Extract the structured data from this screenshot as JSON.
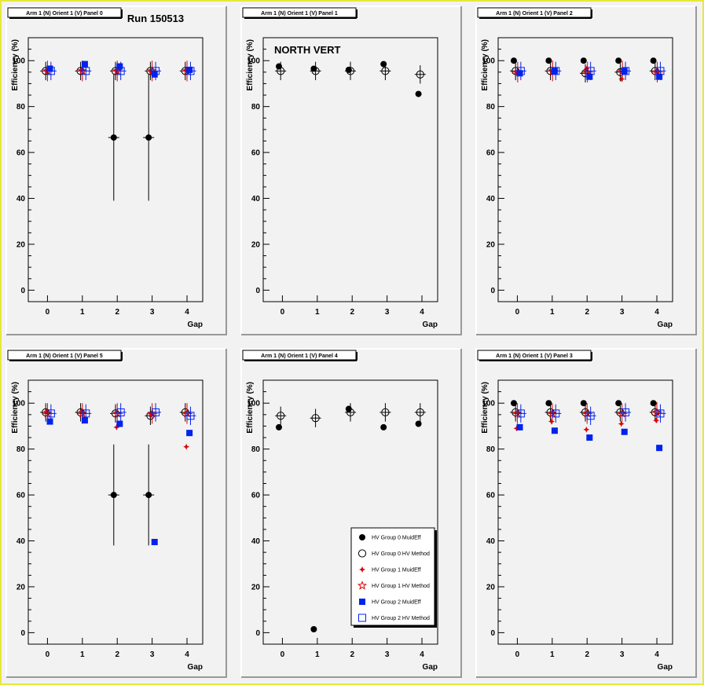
{
  "header": {
    "run_label": "Run 150513"
  },
  "colors": {
    "group0": "#000000",
    "group1": "#dd0000",
    "group2": "#0022ee",
    "panel_bg": "#f2f2f2",
    "frame": "#e8e83a"
  },
  "axes": {
    "xlabel": "Gap",
    "ylabel": "Efficiency (%)",
    "x_ticks": [
      "0",
      "1",
      "2",
      "3",
      "4"
    ],
    "y_ticks": [
      "0",
      "20",
      "40",
      "60",
      "80",
      "100"
    ]
  },
  "legend": {
    "entries": [
      {
        "label": "HV Group 0 MuidEff",
        "marker": "filled-circle",
        "color": "#000000"
      },
      {
        "label": "HV Group 0 HV Method",
        "marker": "open-circle",
        "color": "#000000"
      },
      {
        "label": "HV Group 1 MuidEff",
        "marker": "filled-star",
        "color": "#dd0000"
      },
      {
        "label": "HV Group 1 HV Method",
        "marker": "open-star",
        "color": "#dd0000"
      },
      {
        "label": "HV Group 2 MuidEff",
        "marker": "filled-square",
        "color": "#0022ee"
      },
      {
        "label": "HV Group 2 HV Method",
        "marker": "open-square",
        "color": "#0022ee"
      }
    ]
  },
  "chart_data": [
    {
      "type": "scatter",
      "title": "Arm 1 (N) Orient 1 (V) Panel 0",
      "annotation": "",
      "xlabel": "Gap",
      "ylabel": "Efficiency (%)",
      "xlim": [
        -0.55,
        4.45
      ],
      "ylim": [
        -5,
        110
      ],
      "series": [
        {
          "name": "HV Group 0 MuidEff",
          "marker": "filled-circle",
          "color": "#000000",
          "x_offset": -0.1,
          "points": [],
          "values": [
            null,
            null,
            66.5,
            66.5,
            null
          ],
          "err": [
            null,
            null,
            27.5,
            27.5,
            null
          ]
        },
        {
          "name": "HV Group 0 HV Method",
          "marker": "open-circle",
          "color": "#000000",
          "x_offset": -0.05,
          "values": [
            95.5,
            95.5,
            95.5,
            95.5,
            95.5
          ],
          "err": [
            4,
            4,
            4,
            4,
            4
          ]
        },
        {
          "name": "HV Group 1 MuidEff",
          "marker": "filled-star",
          "color": "#dd0000",
          "x_offset": -0.02,
          "values": [
            95.5,
            96,
            95.5,
            95,
            96
          ],
          "err": [
            0,
            0,
            0,
            0,
            0
          ]
        },
        {
          "name": "HV Group 1 HV Method",
          "marker": "open-star",
          "color": "#dd0000",
          "x_offset": 0,
          "values": [
            95.5,
            95.5,
            95.5,
            95.5,
            95.5
          ],
          "err": [
            4.5,
            4.5,
            4.5,
            4.5,
            4.5
          ]
        },
        {
          "name": "HV Group 2 MuidEff",
          "marker": "filled-square",
          "color": "#0022ee",
          "x_offset": 0.07,
          "values": [
            96.5,
            98.5,
            97.5,
            94,
            96
          ],
          "err": [
            0,
            0,
            0,
            0,
            0
          ]
        },
        {
          "name": "HV Group 2 HV Method",
          "marker": "open-square",
          "color": "#0022ee",
          "x_offset": 0.1,
          "values": [
            95.5,
            95.5,
            95.5,
            95.5,
            95.5
          ],
          "err": [
            4,
            4,
            4,
            4,
            4
          ]
        }
      ]
    },
    {
      "type": "scatter",
      "title": "Arm 1 (N) Orient 1 (V) Panel 1",
      "annotation": "NORTH VERT",
      "xlabel": "Gap",
      "ylabel": "Efficiency (%)",
      "xlim": [
        -0.55,
        4.45
      ],
      "ylim": [
        -5,
        110
      ],
      "series": [
        {
          "name": "HV Group 0 MuidEff",
          "marker": "filled-circle",
          "color": "#000000",
          "x_offset": -0.1,
          "values": [
            97.5,
            96.5,
            96,
            98.5,
            85.5
          ],
          "err": [
            0,
            0,
            0,
            0,
            0
          ]
        },
        {
          "name": "HV Group 0 HV Method",
          "marker": "open-circle",
          "color": "#000000",
          "x_offset": -0.05,
          "values": [
            95.5,
            95.5,
            95.5,
            95.5,
            94
          ],
          "err": [
            4,
            4,
            4,
            4,
            4
          ]
        }
      ]
    },
    {
      "type": "scatter",
      "title": "Arm 1 (N) Orient 1 (V) Panel 2",
      "annotation": "",
      "xlabel": "Gap",
      "ylabel": "Efficiency (%)",
      "xlim": [
        -0.55,
        4.45
      ],
      "ylim": [
        -5,
        110
      ],
      "series": [
        {
          "name": "HV Group 0 MuidEff",
          "marker": "filled-circle",
          "color": "#000000",
          "x_offset": -0.1,
          "values": [
            100,
            100,
            100,
            100,
            100
          ],
          "err": [
            0,
            0,
            0,
            0,
            0
          ]
        },
        {
          "name": "HV Group 0 HV Method",
          "marker": "open-circle",
          "color": "#000000",
          "x_offset": -0.05,
          "values": [
            95.5,
            95.5,
            94.5,
            95,
            95.5
          ],
          "err": [
            4,
            4,
            4,
            4,
            4
          ]
        },
        {
          "name": "HV Group 1 MuidEff",
          "marker": "filled-star",
          "color": "#dd0000",
          "x_offset": -0.01,
          "values": [
            94.5,
            95.5,
            96.5,
            92,
            95.5
          ],
          "err": [
            0,
            0,
            0,
            0,
            0
          ]
        },
        {
          "name": "HV Group 1 HV Method",
          "marker": "open-star",
          "color": "#dd0000",
          "x_offset": 0.01,
          "values": [
            95,
            95.5,
            95,
            95.5,
            95
          ],
          "err": [
            4.5,
            4.5,
            4.5,
            4.5,
            4.5
          ]
        },
        {
          "name": "HV Group 2 MuidEff",
          "marker": "filled-square",
          "color": "#0022ee",
          "x_offset": 0.07,
          "values": [
            94.5,
            95.5,
            93,
            95.5,
            93
          ],
          "err": [
            0,
            0,
            0,
            0,
            0
          ]
        },
        {
          "name": "HV Group 2 HV Method",
          "marker": "open-square",
          "color": "#0022ee",
          "x_offset": 0.1,
          "values": [
            95.5,
            95.5,
            95.5,
            95.5,
            95.5
          ],
          "err": [
            4,
            4,
            4,
            4,
            4
          ]
        }
      ]
    },
    {
      "type": "scatter",
      "title": "Arm 1 (N) Orient 1 (V) Panel 5",
      "annotation": "",
      "xlabel": "Gap",
      "ylabel": "Efficiency (%)",
      "xlim": [
        -0.55,
        4.45
      ],
      "ylim": [
        -5,
        110
      ],
      "series": [
        {
          "name": "HV Group 0 MuidEff",
          "marker": "filled-circle",
          "color": "#000000",
          "x_offset": -0.1,
          "values": [
            null,
            null,
            60,
            60,
            null
          ],
          "err": [
            null,
            null,
            22,
            22,
            null
          ]
        },
        {
          "name": "HV Group 0 HV Method",
          "marker": "open-circle",
          "color": "#000000",
          "x_offset": -0.05,
          "values": [
            96,
            96,
            95.5,
            94.5,
            96
          ],
          "err": [
            4,
            4,
            4,
            4,
            4
          ]
        },
        {
          "name": "HV Group 1 MuidEff",
          "marker": "filled-star",
          "color": "#dd0000",
          "x_offset": -0.02,
          "values": [
            96.5,
            96.5,
            89.5,
            95,
            81
          ],
          "err": [
            0,
            0,
            0,
            0,
            0
          ]
        },
        {
          "name": "HV Group 1 HV Method",
          "marker": "open-star",
          "color": "#dd0000",
          "x_offset": 0,
          "values": [
            95.5,
            95.5,
            95.5,
            95.5,
            95.5
          ],
          "err": [
            4.5,
            4.5,
            4.5,
            4.5,
            4.5
          ]
        },
        {
          "name": "HV Group 2 MuidEff",
          "marker": "filled-square",
          "color": "#0022ee",
          "x_offset": 0.07,
          "values": [
            92,
            92.5,
            91,
            39.5,
            87
          ],
          "err": [
            0,
            0,
            0,
            0,
            0
          ]
        },
        {
          "name": "HV Group 2 HV Method",
          "marker": "open-square",
          "color": "#0022ee",
          "x_offset": 0.1,
          "values": [
            95.5,
            95.5,
            96,
            96,
            94.5
          ],
          "err": [
            4,
            4,
            4,
            4,
            4
          ]
        }
      ]
    },
    {
      "type": "scatter",
      "title": "Arm 1 (N) Orient 1 (V) Panel 4",
      "annotation": "",
      "xlabel": "Gap",
      "ylabel": "Efficiency (%)",
      "xlim": [
        -0.55,
        4.45
      ],
      "ylim": [
        -5,
        110
      ],
      "legend_position": "bottom-right",
      "series": [
        {
          "name": "HV Group 0 MuidEff",
          "marker": "filled-circle",
          "color": "#000000",
          "x_offset": -0.1,
          "values": [
            89.5,
            1.5,
            97.5,
            89.5,
            91
          ],
          "err": [
            0,
            0,
            0,
            0,
            0
          ]
        },
        {
          "name": "HV Group 0 HV Method",
          "marker": "open-circle",
          "color": "#000000",
          "x_offset": -0.05,
          "values": [
            94.5,
            93.5,
            96,
            96,
            96
          ],
          "err": [
            4,
            4,
            4,
            4,
            4
          ]
        }
      ]
    },
    {
      "type": "scatter",
      "title": "Arm 1 (N) Orient 1 (V) Panel 3",
      "annotation": "",
      "xlabel": "Gap",
      "ylabel": "Efficiency (%)",
      "xlim": [
        -0.55,
        4.45
      ],
      "ylim": [
        -5,
        110
      ],
      "series": [
        {
          "name": "HV Group 0 MuidEff",
          "marker": "filled-circle",
          "color": "#000000",
          "x_offset": -0.1,
          "values": [
            100,
            100,
            100,
            100,
            100
          ],
          "err": [
            0,
            0,
            0,
            0,
            0
          ]
        },
        {
          "name": "HV Group 0 HV Method",
          "marker": "open-circle",
          "color": "#000000",
          "x_offset": -0.05,
          "values": [
            96,
            96,
            96,
            96,
            96
          ],
          "err": [
            4,
            4,
            4,
            4,
            4
          ]
        },
        {
          "name": "HV Group 1 MuidEff",
          "marker": "filled-star",
          "color": "#dd0000",
          "x_offset": -0.02,
          "values": [
            89,
            92,
            88.5,
            91,
            92.5
          ],
          "err": [
            0,
            0,
            0,
            0,
            0
          ]
        },
        {
          "name": "HV Group 1 HV Method",
          "marker": "open-star",
          "color": "#dd0000",
          "x_offset": 0,
          "values": [
            95.5,
            95.5,
            95.5,
            95.5,
            96
          ],
          "err": [
            4.5,
            4.5,
            4.5,
            4.5,
            4.5
          ]
        },
        {
          "name": "HV Group 2 MuidEff",
          "marker": "filled-square",
          "color": "#0022ee",
          "x_offset": 0.07,
          "values": [
            89.5,
            88,
            85,
            87.5,
            80.5
          ],
          "err": [
            0,
            0,
            0,
            0,
            0
          ]
        },
        {
          "name": "HV Group 2 HV Method",
          "marker": "open-square",
          "color": "#0022ee",
          "x_offset": 0.1,
          "values": [
            95.5,
            95.5,
            94.5,
            96,
            95.5
          ],
          "err": [
            4,
            4,
            4,
            4,
            4
          ]
        }
      ]
    }
  ]
}
